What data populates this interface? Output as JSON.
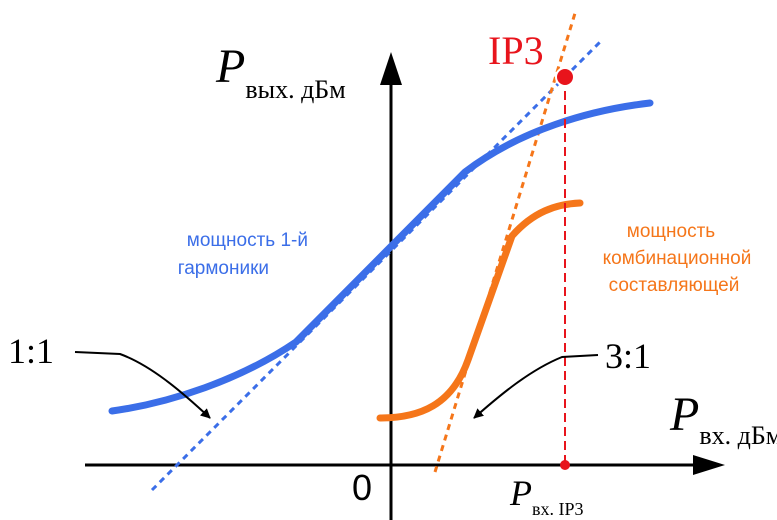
{
  "axes": {
    "y_label_main": "P",
    "y_label_sub": "вых. дБм",
    "x_label_main": "P",
    "x_label_sub": "вх. дБм",
    "origin_label": "0",
    "x_ip3_label_main": "P",
    "x_ip3_label_sub": "вх. IP3"
  },
  "ip3_label": "IP3",
  "curves": {
    "fundamental_label_line1": "мощность 1-й",
    "fundamental_label_line2": "гармоники",
    "intermod_label_line1": "мощность",
    "intermod_label_line2": "комбинационной",
    "intermod_label_line3": "составляющей"
  },
  "slopes": {
    "fundamental": "1:1",
    "intermod": "3:1"
  },
  "colors": {
    "fundamental": "#3b6ee8",
    "intermod": "#f5761a",
    "ip3": "#e8141c",
    "axes": "#000000"
  }
}
